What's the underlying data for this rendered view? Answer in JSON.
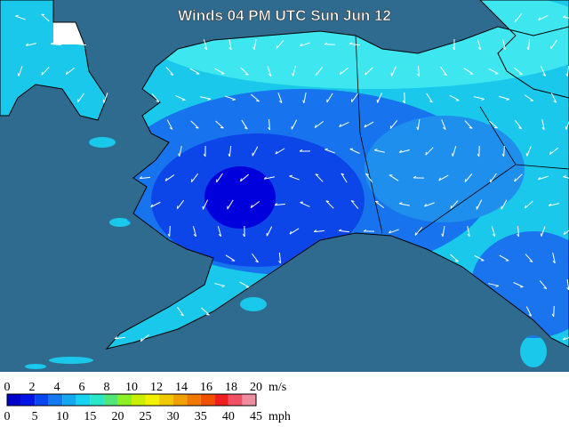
{
  "title": "Winds 04 PM UTC Sun Jun 12",
  "legend": {
    "ms_labels": [
      0,
      2,
      4,
      6,
      8,
      10,
      12,
      14,
      16,
      18,
      20
    ],
    "ms_unit": "m/s",
    "mph_labels": [
      0,
      5,
      10,
      15,
      20,
      25,
      30,
      35,
      40,
      45
    ],
    "mph_unit": "mph"
  }
}
